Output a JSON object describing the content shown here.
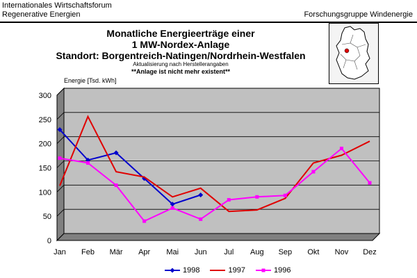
{
  "header": {
    "left_line1": "Internationales Wirtschaftsforum",
    "left_line2": "Regenerative Energien",
    "right": "Forschungsgruppe Windenergie"
  },
  "title": {
    "line1": "Monatliche Energieerträge einer",
    "line2": "1 MW-Nordex-Anlage",
    "line3": "Standort: Borgentreich-Natingen/Nordrhein-Westfalen",
    "note": "Aktualisierung nach Herstellerangaben",
    "note2": "**Anlage ist nicht mehr existent**"
  },
  "colors": {
    "plot_bg": "#c0c0c0",
    "wall_dark": "#808080",
    "series_1998": "#0000cc",
    "series_1997": "#e00000",
    "series_1996": "#ff00ff"
  },
  "chart_data": {
    "type": "line",
    "ylabel": "Energie [Tsd. kWh]",
    "ylim": [
      0,
      300
    ],
    "yticks": [
      0,
      50,
      100,
      150,
      200,
      250,
      300
    ],
    "categories": [
      "Jan",
      "Feb",
      "Mär",
      "Apr",
      "Mai",
      "Jun",
      "Jul",
      "Aug",
      "Sep",
      "Okt",
      "Nov",
      "Dez"
    ],
    "grid": true,
    "legend_position": "bottom",
    "series": [
      {
        "name": "1998",
        "color": "#0000cc",
        "marker": "diamond",
        "values": [
          229,
          166,
          181,
          128,
          75,
          94,
          null,
          null,
          null,
          null,
          null,
          null
        ]
      },
      {
        "name": "1997",
        "color": "#e00000",
        "marker": "none",
        "values": [
          113,
          256,
          142,
          131,
          90,
          108,
          60,
          63,
          87,
          160,
          176,
          205
        ]
      },
      {
        "name": "1996",
        "color": "#ff00ff",
        "marker": "square",
        "values": [
          170,
          160,
          114,
          40,
          67,
          44,
          84,
          90,
          93,
          142,
          190,
          119
        ]
      }
    ]
  }
}
